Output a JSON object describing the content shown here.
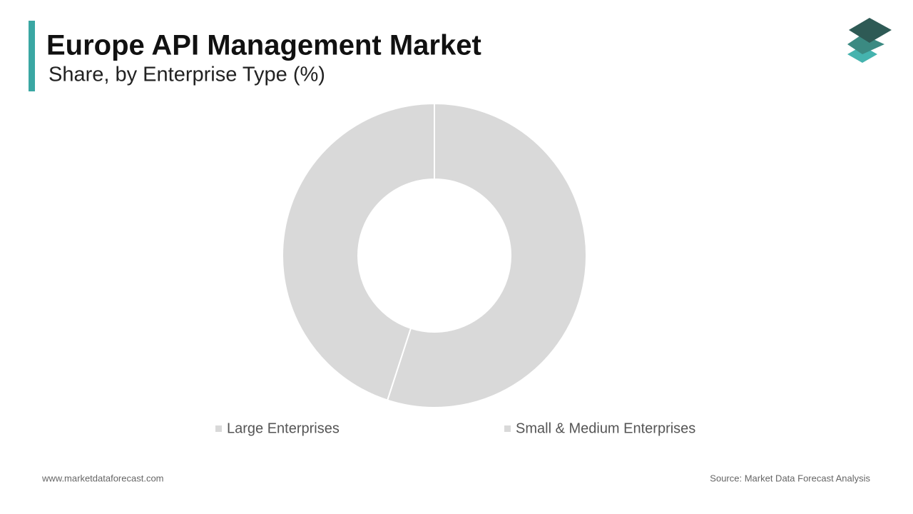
{
  "chart_data": {
    "type": "donut",
    "title": "Europe API Management Market",
    "subtitle": "Share, by Enterprise Type (%)",
    "categories": [
      "Large Enterprises",
      "Small & Medium Enterprises"
    ],
    "values": [
      55,
      45
    ],
    "colors": [
      "#d9d9d9",
      "#d9d9d9"
    ]
  },
  "footer": {
    "website": "www.marketdataforecast.com",
    "source": "Source: Market Data Forecast Analysis"
  }
}
